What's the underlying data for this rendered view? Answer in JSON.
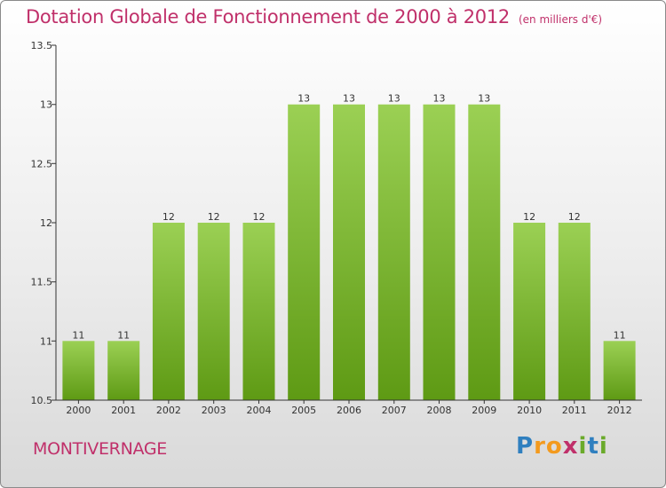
{
  "header": {
    "title": "Dotation Globale de Fonctionnement de 2000 à 2012",
    "subtitle": "(en milliers d'€)"
  },
  "footer": {
    "commune": "MONTIVERNAGE",
    "logo_letters": [
      "P",
      "r",
      "o",
      "x",
      "i",
      "t",
      "i"
    ]
  },
  "colors": {
    "title": "#c0306a",
    "bar_top": "#9bd054",
    "bar_bottom": "#5e9a14",
    "axis": "#333333",
    "logo": [
      "#2f7fbf",
      "#f39a1e",
      "#f39a1e",
      "#c0306a",
      "#6aaa2a",
      "#2f7fbf",
      "#6aaa2a"
    ]
  },
  "chart_data": {
    "type": "bar",
    "title": "Dotation Globale de Fonctionnement de 2000 à 2012",
    "subtitle": "(en milliers d'€)",
    "categories": [
      "2000",
      "2001",
      "2002",
      "2003",
      "2004",
      "2005",
      "2006",
      "2007",
      "2008",
      "2009",
      "2010",
      "2011",
      "2012"
    ],
    "values": [
      11,
      11,
      12,
      12,
      12,
      13,
      13,
      13,
      13,
      13,
      12,
      12,
      11
    ],
    "data_labels": [
      "11",
      "11",
      "12",
      "12",
      "12",
      "13",
      "13",
      "13",
      "13",
      "13",
      "12",
      "12",
      "11"
    ],
    "ylim": [
      10.5,
      13.5
    ],
    "yticks": [
      10.5,
      11,
      11.5,
      12,
      12.5,
      13,
      13.5
    ],
    "ytick_labels": [
      "10.5",
      "11",
      "11.5",
      "12",
      "12.5",
      "13",
      "13.5"
    ],
    "xlabel": "",
    "ylabel": "",
    "grid": false,
    "legend": "none"
  }
}
